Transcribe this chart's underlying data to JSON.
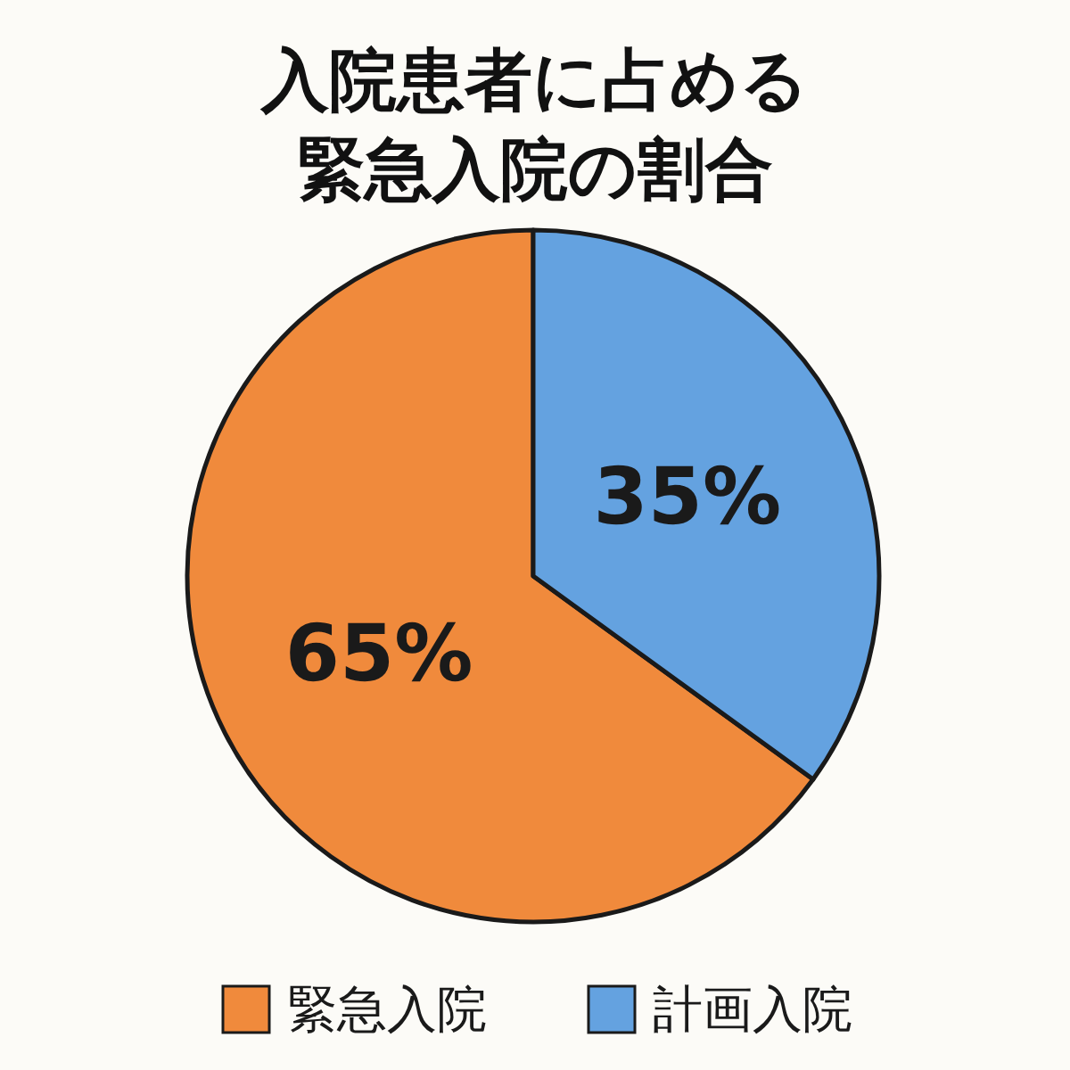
{
  "chart_data": {
    "type": "pie",
    "title": "入院患者に占める緊急入院の割合",
    "categories": [
      "緊急入院",
      "計画入院"
    ],
    "values": [
      65,
      35
    ],
    "colors": [
      "#f08a3c",
      "#64a2e0"
    ],
    "value_labels": [
      "65%",
      "35%"
    ],
    "legend": "bottom"
  }
}
